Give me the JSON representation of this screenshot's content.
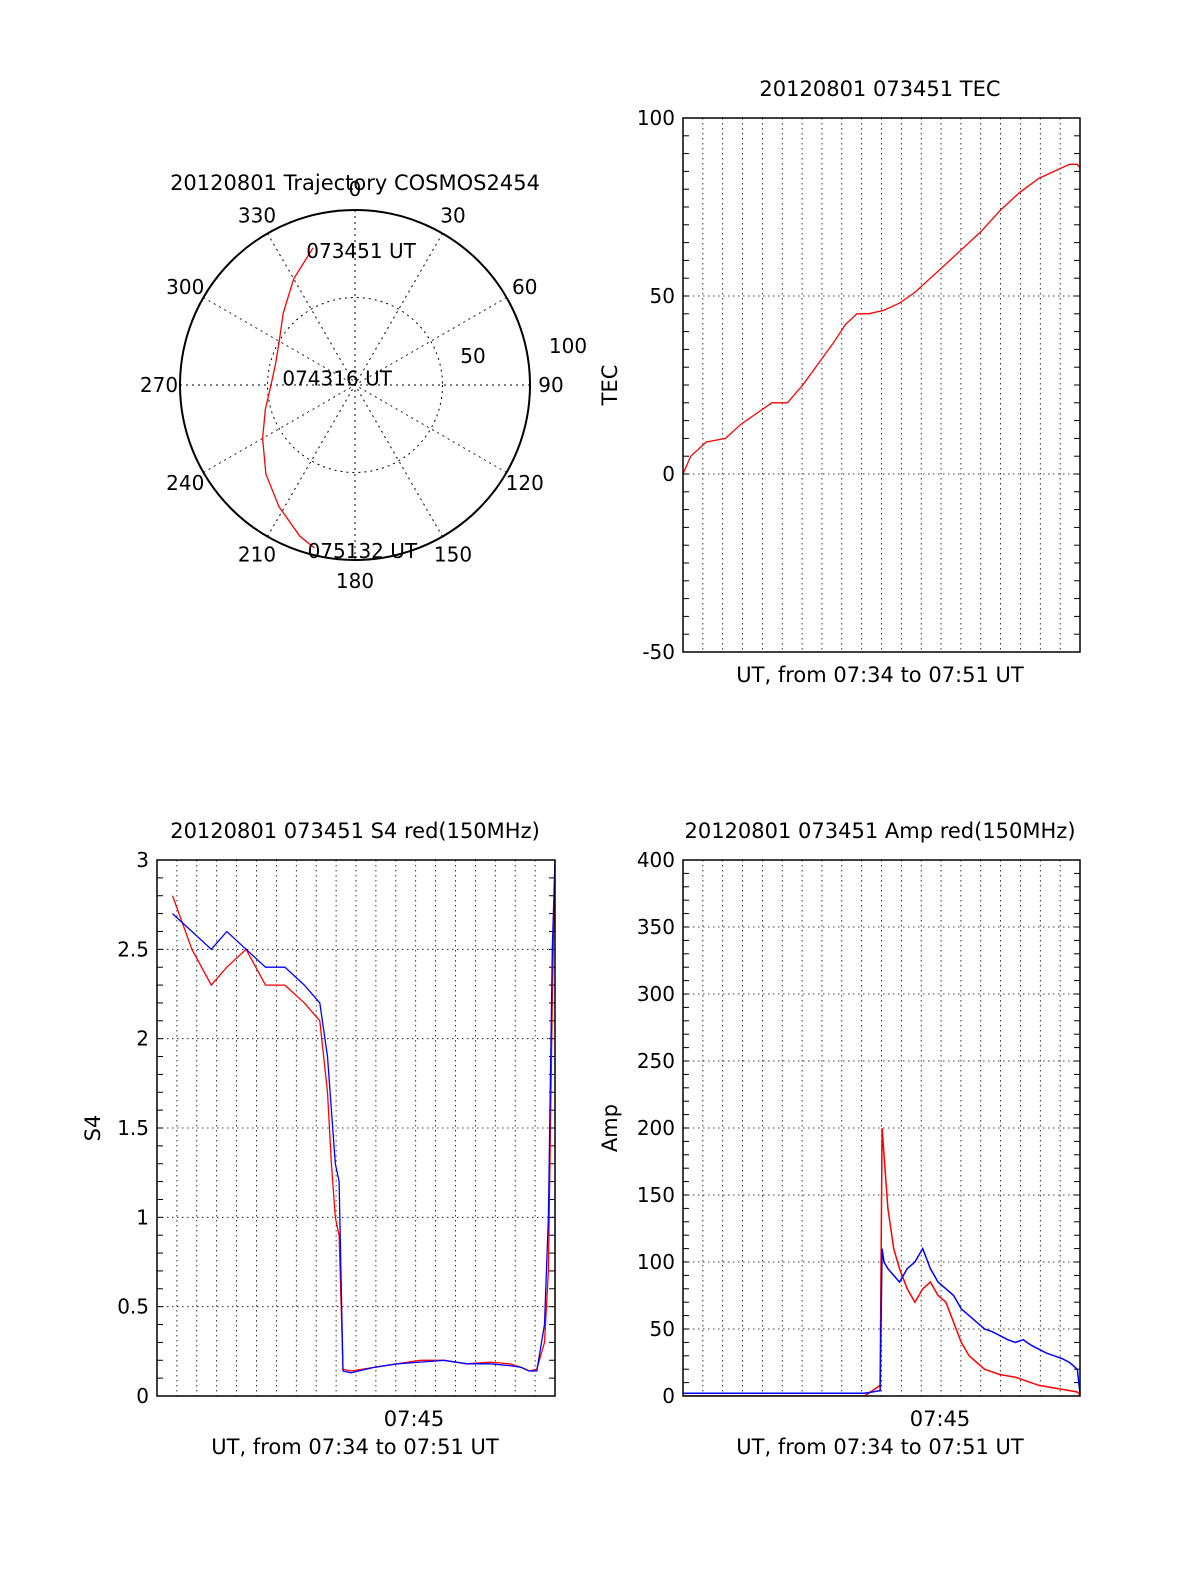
{
  "colors": {
    "red": "#ff0000",
    "blue": "#0000ff",
    "axis": "#000000",
    "grid": "#000000"
  },
  "chart_data": [
    {
      "id": "trajectory",
      "type": "polar",
      "title": "20120801 Trajectory COSMOS2454",
      "angle_labels": [
        "0",
        "30",
        "60",
        "90",
        "120",
        "150",
        "180",
        "210",
        "240",
        "270",
        "300",
        "330"
      ],
      "radius_labels": [
        "50",
        "100"
      ],
      "r_max": 100,
      "point_labels": [
        {
          "text": "073451 UT",
          "az": 343,
          "r": 82
        },
        {
          "text": "074316 UT",
          "az": 278,
          "r": 38
        },
        {
          "text": "075132 UT",
          "az": 194,
          "r": 96
        }
      ],
      "series": [
        {
          "color": "red",
          "points": [
            [
              343,
              82
            ],
            [
              330,
              70
            ],
            [
              315,
              58
            ],
            [
              300,
              50
            ],
            [
              285,
              47
            ],
            [
              270,
              48
            ],
            [
              255,
              53
            ],
            [
              240,
              61
            ],
            [
              225,
              72
            ],
            [
              212,
              82
            ],
            [
              200,
              92
            ],
            [
              194,
              96
            ]
          ]
        }
      ]
    },
    {
      "id": "tec",
      "type": "line",
      "title": "20120801 073451 TEC",
      "ylabel": "TEC",
      "xlabel": "UT, from 07:34 to 07:51 UT",
      "ylim": [
        -50,
        100
      ],
      "yticks": [
        "-50",
        "0",
        "50",
        "100"
      ],
      "xlim": [
        0,
        1027
      ],
      "series": [
        {
          "color": "red",
          "x": [
            0,
            20,
            60,
            110,
            150,
            190,
            230,
            270,
            310,
            350,
            390,
            420,
            450,
            480,
            520,
            560,
            600,
            640,
            680,
            720,
            770,
            820,
            870,
            920,
            960,
            1000,
            1020,
            1027
          ],
          "y": [
            0,
            5,
            9,
            10,
            14,
            17,
            20,
            20,
            25,
            31,
            37,
            42,
            45,
            45,
            46,
            48,
            51,
            55,
            59,
            63,
            68,
            74,
            79,
            83,
            85,
            87,
            87,
            86
          ]
        }
      ]
    },
    {
      "id": "s4",
      "type": "line",
      "title": "20120801 073451 S4 red(150MHz)",
      "ylabel": "S4",
      "xlabel": "UT, from 07:34 to 07:51 UT",
      "xtick_label": "07:45",
      "ylim": [
        0,
        3
      ],
      "yticks": [
        "0",
        "0.5",
        "1",
        "1.5",
        "2",
        "2.5",
        "3"
      ],
      "xlim": [
        0,
        1027
      ],
      "series": [
        {
          "name": "red",
          "color": "red",
          "x": [
            40,
            90,
            140,
            180,
            230,
            280,
            330,
            380,
            420,
            440,
            450,
            460,
            470,
            480,
            500,
            560,
            620,
            680,
            740,
            800,
            860,
            910,
            940,
            960,
            980,
            1000,
            1010,
            1020,
            1027
          ],
          "y": [
            2.8,
            2.5,
            2.3,
            2.4,
            2.5,
            2.3,
            2.3,
            2.2,
            2.1,
            1.7,
            1.3,
            1.0,
            0.9,
            0.15,
            0.14,
            0.16,
            0.18,
            0.2,
            0.2,
            0.18,
            0.19,
            0.18,
            0.16,
            0.14,
            0.15,
            0.3,
            0.7,
            2.2,
            3.0
          ]
        },
        {
          "name": "blue",
          "color": "blue",
          "x": [
            40,
            90,
            140,
            180,
            230,
            280,
            330,
            380,
            420,
            440,
            450,
            460,
            470,
            480,
            500,
            560,
            620,
            680,
            740,
            800,
            860,
            910,
            940,
            960,
            980,
            1000,
            1010,
            1020,
            1027
          ],
          "y": [
            2.7,
            2.6,
            2.5,
            2.6,
            2.5,
            2.4,
            2.4,
            2.3,
            2.2,
            1.9,
            1.6,
            1.3,
            1.2,
            0.14,
            0.13,
            0.16,
            0.18,
            0.19,
            0.2,
            0.18,
            0.18,
            0.17,
            0.16,
            0.14,
            0.14,
            0.4,
            1.0,
            2.5,
            3.0
          ]
        }
      ]
    },
    {
      "id": "amp",
      "type": "line",
      "title": "20120801 073451 Amp red(150MHz)",
      "ylabel": "Amp",
      "xlabel": "UT, from 07:34 to 07:51 UT",
      "xtick_label": "07:45",
      "ylim": [
        0,
        400
      ],
      "yticks": [
        "0",
        "50",
        "100",
        "150",
        "200",
        "250",
        "300",
        "350",
        "400"
      ],
      "xlim": [
        0,
        1027
      ],
      "series": [
        {
          "name": "red",
          "color": "red",
          "x": [
            0,
            100,
            200,
            300,
            400,
            470,
            510,
            515,
            520,
            530,
            545,
            560,
            580,
            600,
            620,
            640,
            660,
            680,
            700,
            720,
            740,
            760,
            780,
            800,
            820,
            840,
            860,
            880,
            900,
            920,
            940,
            960,
            980,
            1000,
            1020,
            1027
          ],
          "y": [
            0,
            0,
            0,
            0,
            0,
            0,
            8,
            200,
            180,
            140,
            110,
            95,
            80,
            70,
            80,
            85,
            75,
            70,
            55,
            40,
            30,
            25,
            20,
            18,
            16,
            15,
            14,
            12,
            10,
            8,
            7,
            6,
            5,
            4,
            3,
            1
          ]
        },
        {
          "name": "blue",
          "color": "blue",
          "x": [
            0,
            100,
            200,
            300,
            400,
            470,
            510,
            515,
            520,
            530,
            545,
            560,
            580,
            600,
            620,
            640,
            660,
            680,
            700,
            720,
            740,
            760,
            780,
            800,
            820,
            840,
            860,
            880,
            900,
            920,
            940,
            960,
            980,
            1000,
            1020,
            1027
          ],
          "y": [
            2,
            2,
            2,
            2,
            2,
            2,
            4,
            110,
            100,
            95,
            90,
            85,
            95,
            100,
            110,
            95,
            85,
            80,
            75,
            65,
            60,
            55,
            50,
            48,
            45,
            42,
            40,
            42,
            38,
            35,
            32,
            30,
            28,
            25,
            20,
            2
          ]
        }
      ]
    }
  ]
}
